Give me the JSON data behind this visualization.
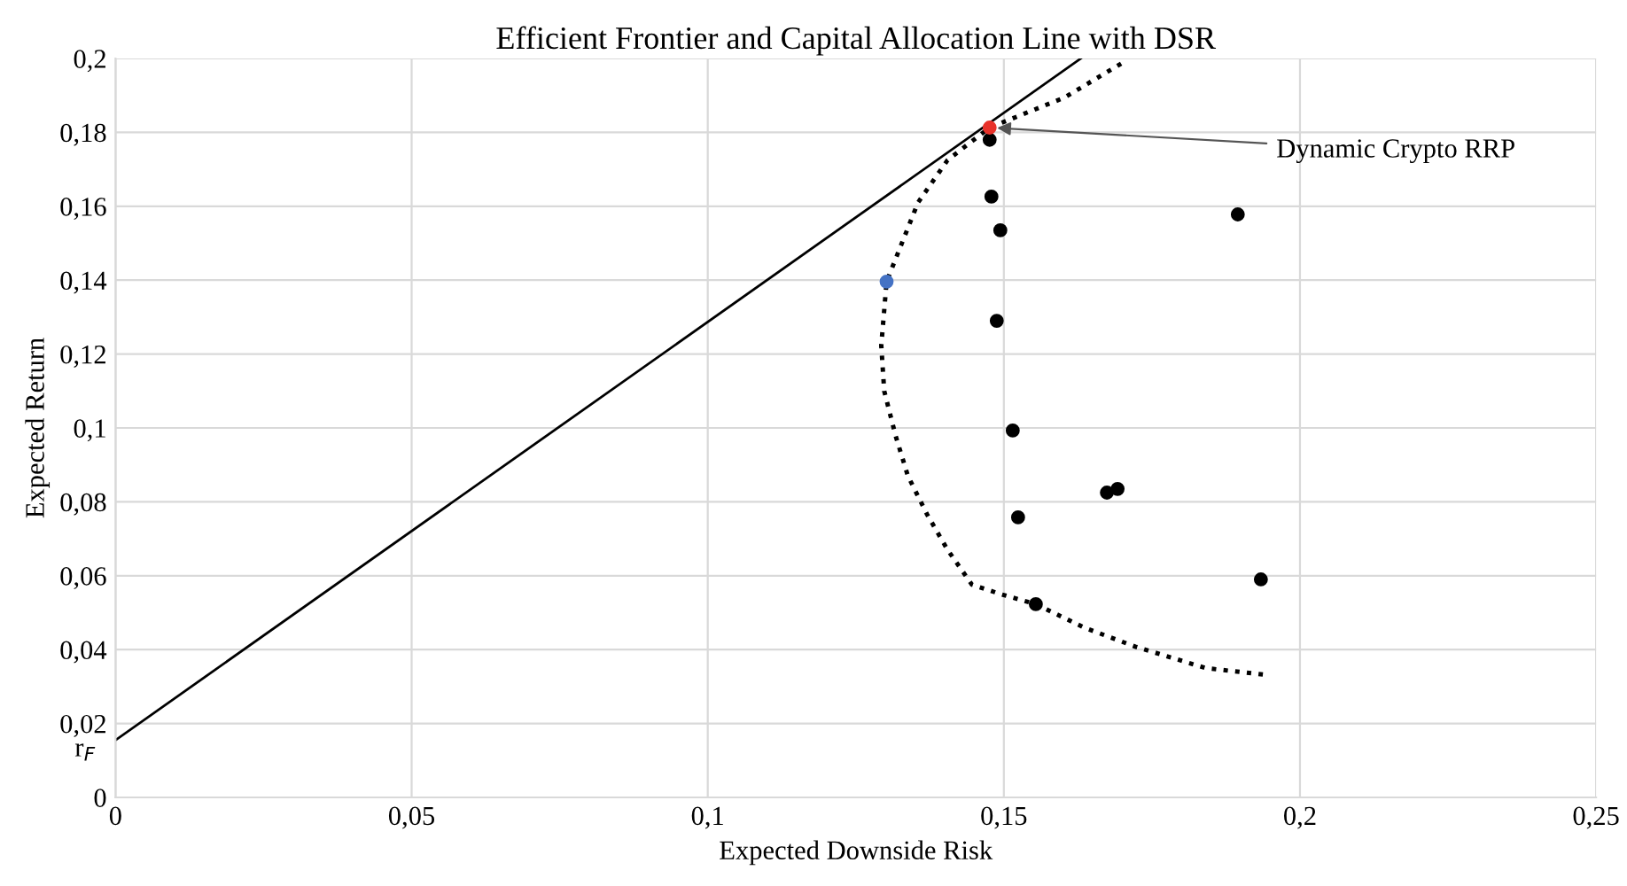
{
  "chart_data": {
    "type": "scatter",
    "title": "Efficient Frontier and Capital Allocation Line with DSR",
    "xlabel": "Expected Downside Risk",
    "ylabel": "Expected Return",
    "xlim": [
      0,
      0.25
    ],
    "ylim": [
      0,
      0.2
    ],
    "xticks": [
      {
        "value": 0,
        "label": "0"
      },
      {
        "value": 0.05,
        "label": "0,05"
      },
      {
        "value": 0.1,
        "label": "0,1"
      },
      {
        "value": 0.15,
        "label": "0,15"
      },
      {
        "value": 0.2,
        "label": "0,2"
      },
      {
        "value": 0.25,
        "label": "0,25"
      }
    ],
    "yticks": [
      {
        "value": 0,
        "label": "0"
      },
      {
        "value": 0.02,
        "label": "0,02"
      },
      {
        "value": 0.04,
        "label": "0,04"
      },
      {
        "value": 0.06,
        "label": "0,06"
      },
      {
        "value": 0.08,
        "label": "0,08"
      },
      {
        "value": 0.1,
        "label": "0,1"
      },
      {
        "value": 0.12,
        "label": "0,12"
      },
      {
        "value": 0.14,
        "label": "0,14"
      },
      {
        "value": 0.16,
        "label": "0,16"
      },
      {
        "value": 0.18,
        "label": "0,18"
      },
      {
        "value": 0.2,
        "label": "0,2"
      }
    ],
    "grid": true,
    "legend": false,
    "series": [
      {
        "type": "line",
        "color": "#000000",
        "line_style": "solid",
        "marker": "none",
        "x": [
          0,
          0.163
        ],
        "values": [
          0.0155,
          0.2
        ]
      },
      {
        "type": "line",
        "color": "#000000",
        "line_style": "dotted",
        "marker": "none",
        "x": [
          0.1698,
          0.1602,
          0.1476,
          0.1405,
          0.1355,
          0.1302,
          0.1293,
          0.1298,
          0.1317,
          0.1338,
          0.137,
          0.1405,
          0.1446,
          0.1495,
          0.1554,
          0.1635,
          0.1722,
          0.1841,
          0.1946
        ],
        "values": [
          0.1986,
          0.1894,
          0.1813,
          0.1725,
          0.161,
          0.1396,
          0.1223,
          0.11,
          0.098,
          0.087,
          0.0767,
          0.067,
          0.0576,
          0.055,
          0.0523,
          0.046,
          0.0408,
          0.035,
          0.0331
        ]
      },
      {
        "color": "#000000",
        "marker": "circle",
        "x": [
          0.1476,
          0.1479,
          0.1494,
          0.1895,
          0.1488,
          0.1515,
          0.1674,
          0.1692,
          0.1524,
          0.1934,
          0.1554
        ],
        "values": [
          0.178,
          0.1626,
          0.1535,
          0.1578,
          0.129,
          0.0993,
          0.0825,
          0.0835,
          0.0758,
          0.059,
          0.0523
        ]
      },
      {
        "color": "#e8322a",
        "marker": "circle",
        "x": [
          0.1476
        ],
        "values": [
          0.1813
        ]
      },
      {
        "color": "#4472c4",
        "marker": "circle",
        "x": [
          0.1302
        ],
        "values": [
          0.1396
        ]
      }
    ],
    "annotations": [
      {
        "text": "Dynamic Crypto RRP",
        "x": 0.1476,
        "y": 0.1813
      },
      {
        "text": "r$_{F}$",
        "x": 0,
        "y": 0.0155
      }
    ]
  }
}
